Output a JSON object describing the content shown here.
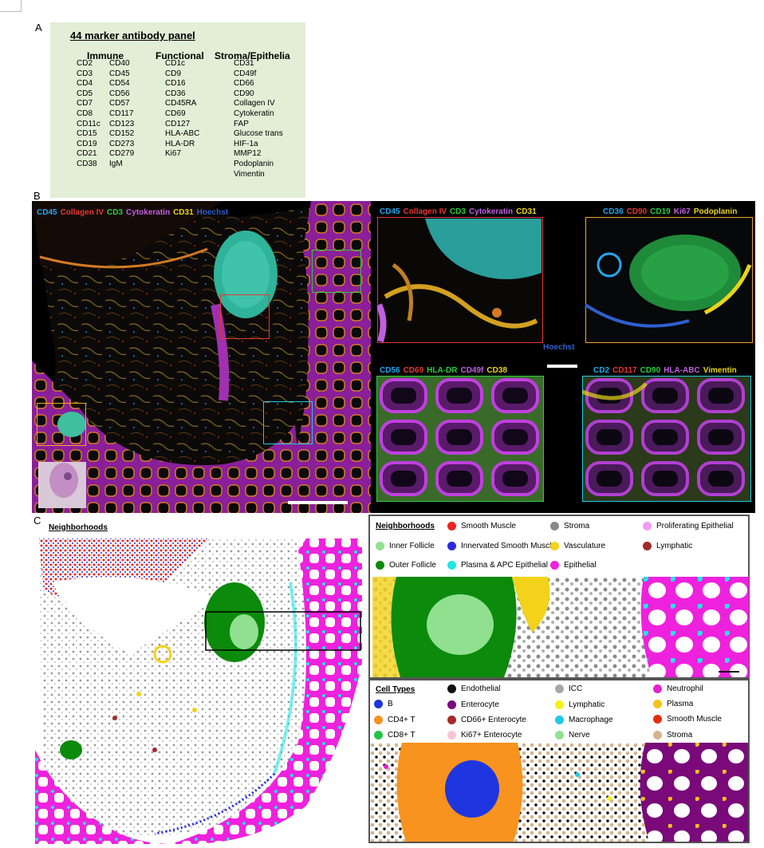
{
  "panel_labels": {
    "a": "A",
    "b": "B",
    "c": "C"
  },
  "panelA": {
    "title": "44 marker antibody panel",
    "col_headers": {
      "immune": "Immune",
      "functional": "Functional",
      "stroma": "Stroma/Epithelia"
    },
    "immune_col1": [
      "CD2",
      "CD3",
      "CD4",
      "CD5",
      "CD7",
      "CD8",
      "CD11c",
      "CD15",
      "CD19",
      "CD21",
      "CD38"
    ],
    "immune_col2": [
      "CD40",
      "CD45",
      "CD54",
      "CD56",
      "CD57",
      "CD117",
      "CD123",
      "CD152",
      "CD273",
      "CD279",
      "IgM"
    ],
    "functional": [
      "CD1c",
      "CD9",
      "CD16",
      "CD36",
      "CD45RA",
      "CD69",
      "CD127",
      "HLA-ABC",
      "HLA-DR",
      "Ki67"
    ],
    "stroma": [
      "CD31",
      "CD49f",
      "CD66",
      "CD90",
      "Collagen IV",
      "Cytokeratin",
      "FAP",
      "Glucose trans",
      "HIF-1a",
      "MMP12",
      "Podoplanin",
      "Vimentin"
    ]
  },
  "panelB": {
    "main_markers": [
      {
        "t": "CD45",
        "c": "#22a7f0"
      },
      {
        "t": "Collagen IV",
        "c": "#e53935"
      },
      {
        "t": "CD3",
        "c": "#2ecc40"
      },
      {
        "t": "Cytokeratin",
        "c": "#c060e0"
      },
      {
        "t": "CD31",
        "c": "#e8d51a"
      },
      {
        "t": "Hoechst",
        "c": "#2f5fd0"
      }
    ],
    "inset1_markers": [
      {
        "t": "CD45",
        "c": "#22a7f0"
      },
      {
        "t": "Collagen IV",
        "c": "#e53935"
      },
      {
        "t": "CD3",
        "c": "#2ecc40"
      },
      {
        "t": "Cytokeratin",
        "c": "#c060e0"
      },
      {
        "t": "CD31",
        "c": "#e8d51a"
      }
    ],
    "inset2_markers": [
      {
        "t": "CD36",
        "c": "#22a7f0"
      },
      {
        "t": "CD90",
        "c": "#e53935"
      },
      {
        "t": "CD19",
        "c": "#2ecc40"
      },
      {
        "t": "Ki67",
        "c": "#c060e0"
      },
      {
        "t": "Podoplanin",
        "c": "#e8d51a"
      }
    ],
    "inset3_markers": [
      {
        "t": "CD56",
        "c": "#22a7f0"
      },
      {
        "t": "CD69",
        "c": "#e53935"
      },
      {
        "t": "HLA-DR",
        "c": "#2ecc40"
      },
      {
        "t": "CD49f",
        "c": "#c060e0"
      },
      {
        "t": "CD38",
        "c": "#e8d51a"
      }
    ],
    "inset4_markers": [
      {
        "t": "CD2",
        "c": "#22a7f0"
      },
      {
        "t": "CD117",
        "c": "#e53935"
      },
      {
        "t": "CD90",
        "c": "#2ecc40"
      },
      {
        "t": "HLA-ABC",
        "c": "#c060e0"
      },
      {
        "t": "Vimentin",
        "c": "#e8d51a"
      }
    ],
    "hoechst_label": "Hoechst",
    "hoechst_color": "#2f5fd0"
  },
  "panelC": {
    "neighborhoods_title": "Neighborhoods",
    "neighborhoods_legend_title": "Neighborhoods",
    "neighborhoods": [
      {
        "t": "Inner Follicle",
        "c": "#90e090"
      },
      {
        "t": "Outer Follicle",
        "c": "#0b8a0b"
      },
      {
        "t": "Smooth Muscle",
        "c": "#ee2222"
      },
      {
        "t": "Innervated Smooth Muscle",
        "c": "#2a2adf"
      },
      {
        "t": "Plasma & APC Epithelial",
        "c": "#22e5e5"
      },
      {
        "t": "Stroma",
        "c": "#8a8a8a"
      },
      {
        "t": "Vasculature",
        "c": "#f2d21a"
      },
      {
        "t": "Epithelial",
        "c": "#ee22dd"
      },
      {
        "t": "Proliferating Epithelial",
        "c": "#f39af0"
      },
      {
        "t": "Lymphatic",
        "c": "#a52a2a"
      }
    ],
    "celltypes_title": "Cell Types",
    "celltypes": [
      {
        "t": "B",
        "c": "#1f35e0"
      },
      {
        "t": "CD4+ T",
        "c": "#f7931e"
      },
      {
        "t": "CD8+ T",
        "c": "#22c448"
      },
      {
        "t": "Endothelial",
        "c": "#111111"
      },
      {
        "t": "Enterocyte",
        "c": "#7a0a7a"
      },
      {
        "t": "CD66+ Enterocyte",
        "c": "#a52a2a"
      },
      {
        "t": "Ki67+ Enterocyte",
        "c": "#f6c5d0"
      },
      {
        "t": "ICC",
        "c": "#a8a8a8"
      },
      {
        "t": "Lymphatic",
        "c": "#f2f21a"
      },
      {
        "t": "Macrophage",
        "c": "#22c8e8"
      },
      {
        "t": "Nerve",
        "c": "#90e090"
      },
      {
        "t": "Neutrophil",
        "c": "#e022d0"
      },
      {
        "t": "Plasma",
        "c": "#f7c21a"
      },
      {
        "t": "Smooth Muscle",
        "c": "#e03010"
      },
      {
        "t": "Stroma",
        "c": "#d4b48c"
      }
    ]
  }
}
